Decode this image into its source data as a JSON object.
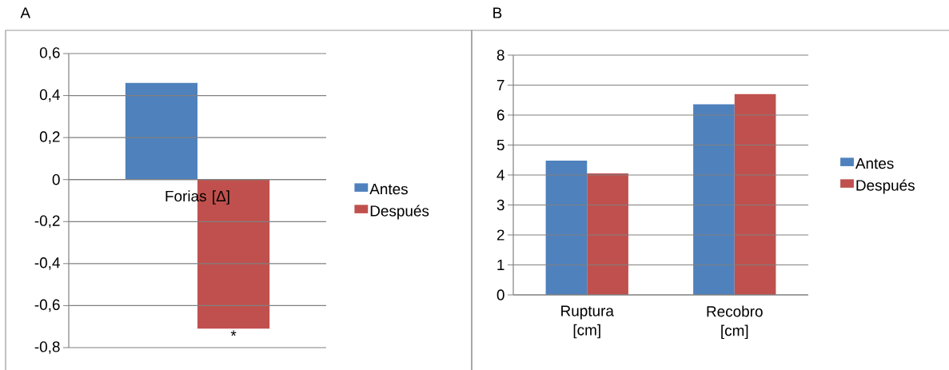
{
  "chart_data": [
    {
      "type": "bar",
      "title": "A",
      "categories": [
        "Forias [Δ]"
      ],
      "series": [
        {
          "name": "Antes",
          "color": "#4f81bd",
          "values": [
            0.46
          ]
        },
        {
          "name": "Después",
          "color": "#c0504d",
          "values": [
            -0.71
          ]
        }
      ],
      "ylim": [
        -0.8,
        0.6
      ],
      "yticks": [
        {
          "value": -0.8,
          "label": "-0,8"
        },
        {
          "value": -0.6,
          "label": "-0,6"
        },
        {
          "value": -0.4,
          "label": "-0,4"
        },
        {
          "value": -0.2,
          "label": "-0,2"
        },
        0,
        {
          "value": 0.2,
          "label": "0,2"
        },
        {
          "value": 0.4,
          "label": "0,4"
        },
        {
          "value": 0.6,
          "label": "0,6"
        }
      ],
      "grid": "y",
      "legend": "right",
      "annotations": [
        {
          "text": "*",
          "x": "Forias [Δ]",
          "y": -0.71
        }
      ]
    },
    {
      "type": "bar",
      "title": "B",
      "categories": [
        "Ruptura [cm]",
        "Recobro [cm]"
      ],
      "series": [
        {
          "name": "Antes",
          "color": "#4f81bd",
          "values": [
            4.48,
            6.36
          ]
        },
        {
          "name": "Después",
          "color": "#c0504d",
          "values": [
            4.05,
            6.7
          ]
        }
      ],
      "ylim": [
        0,
        8
      ],
      "yticks": [
        0,
        1,
        2,
        3,
        4,
        5,
        6,
        7,
        8
      ],
      "grid": "y",
      "legend": "right"
    }
  ]
}
